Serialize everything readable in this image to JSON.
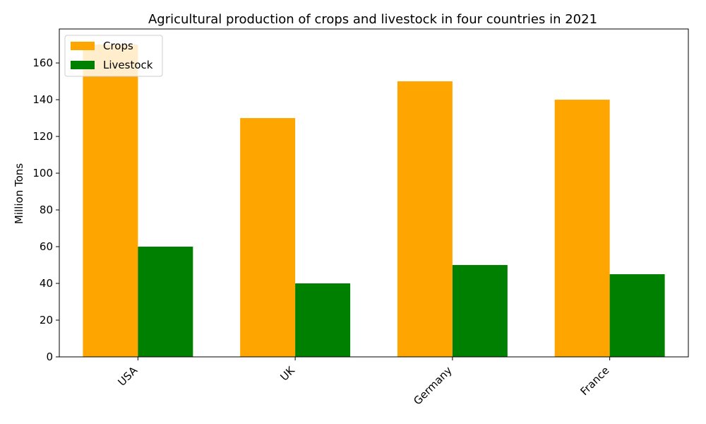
{
  "chart_data": {
    "type": "bar",
    "title": "Agricultural production of crops and livestock in four countries in 2021",
    "xlabel": "",
    "ylabel": "Million Tons",
    "categories": [
      "USA",
      "UK",
      "Germany",
      "France"
    ],
    "series": [
      {
        "name": "Crops",
        "values": [
          170,
          130,
          150,
          140
        ],
        "color": "#FFA500"
      },
      {
        "name": "Livestock",
        "values": [
          60,
          40,
          50,
          45
        ],
        "color": "#008000"
      }
    ],
    "ylim": [
      0,
      178.5
    ],
    "yticks": [
      0,
      20,
      40,
      60,
      80,
      100,
      120,
      140,
      160
    ],
    "grid": false,
    "legend_position": "upper-left"
  }
}
